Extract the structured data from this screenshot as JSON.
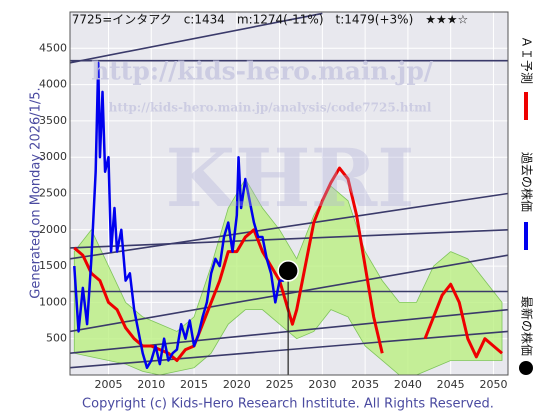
{
  "chart_data": {
    "type": "line",
    "title": "7725=インタアク　c:1434　m:1274(-11%)　t:1479(+3%)　★★★☆",
    "side_note": "Generated on Monday 2026/1/5.",
    "footer": "Copyright (c) Kids-Hero Research Institute. All Rights Reserved.",
    "watermarks": [
      "http://kids-hero.main.jp/",
      "http://kids-hero.main.jp/analysis/code7725.html",
      "KHRI"
    ],
    "xlim": [
      2000.5,
      2051.7
    ],
    "ylim": [
      0,
      5000
    ],
    "xticks": [
      2005,
      2010,
      2015,
      2020,
      2025,
      2030,
      2035,
      2040,
      2045,
      2050
    ],
    "yticks": [
      500,
      1000,
      1500,
      2000,
      2500,
      3000,
      3500,
      4000,
      4500
    ],
    "grid": true,
    "band": {
      "color": "#b8f07a",
      "x": [
        2001,
        2003,
        2005,
        2007,
        2009,
        2011,
        2013,
        2015,
        2017,
        2019,
        2021,
        2023,
        2025,
        2027,
        2029,
        2031,
        2033,
        2035,
        2037,
        2039,
        2041,
        2043,
        2045,
        2047,
        2049,
        2051
      ],
      "upper": [
        1700,
        2000,
        1500,
        1000,
        800,
        700,
        600,
        800,
        1500,
        2300,
        2700,
        2300,
        2000,
        1600,
        2200,
        2600,
        2400,
        1700,
        1300,
        1000,
        1000,
        1500,
        1700,
        1600,
        1300,
        1000
      ],
      "lower": [
        300,
        250,
        200,
        150,
        50,
        0,
        50,
        100,
        300,
        700,
        900,
        900,
        700,
        500,
        600,
        900,
        800,
        400,
        200,
        0,
        0,
        100,
        200,
        200,
        200,
        200
      ]
    },
    "trend_lines": [
      [
        [
          2000.5,
          4330
        ],
        [
          2051.7,
          4330
        ]
      ],
      [
        [
          2000.5,
          4300
        ],
        [
          2030,
          4980
        ]
      ],
      [
        [
          2000.5,
          1150
        ],
        [
          2051.7,
          1150
        ]
      ],
      [
        [
          2000.5,
          1600
        ],
        [
          2051.7,
          2500
        ]
      ],
      [
        [
          2000.5,
          1750
        ],
        [
          2051.7,
          2000
        ]
      ],
      [
        [
          2000.5,
          600
        ],
        [
          2051.7,
          1650
        ]
      ],
      [
        [
          2000.5,
          300
        ],
        [
          2051.7,
          900
        ]
      ],
      [
        [
          2000.5,
          100
        ],
        [
          2051.7,
          600
        ]
      ]
    ],
    "series": [
      {
        "name": "ＡＩ予測",
        "color": "#ee0000",
        "x": [
          2001,
          2002,
          2003,
          2004,
          2005,
          2006,
          2007,
          2008,
          2009,
          2010,
          2011,
          2012,
          2013,
          2014,
          2015,
          2016,
          2017,
          2018,
          2019,
          2020,
          2021,
          2022,
          2023,
          2024,
          2025,
          2026,
          2026.5,
          2027,
          2028,
          2029,
          2030,
          2031,
          2032,
          2033,
          2034,
          2035,
          2036,
          2037,
          2038,
          2039,
          2040,
          2041,
          2042,
          2043,
          2044,
          2045,
          2046,
          2047,
          2048,
          2049,
          2050,
          2051
        ],
        "values": [
          1750,
          1650,
          1400,
          1300,
          1000,
          900,
          650,
          500,
          400,
          400,
          350,
          300,
          200,
          350,
          400,
          700,
          1000,
          1300,
          1700,
          1700,
          1900,
          2000,
          1700,
          1500,
          1300,
          900,
          700,
          900,
          1500,
          2100,
          2400,
          2650,
          2850,
          2700,
          2200,
          1500,
          800,
          300,
          null,
          null,
          null,
          null,
          500,
          800,
          1100,
          1250,
          1000,
          500,
          250,
          500,
          400,
          300
        ]
      },
      {
        "name": "過去の株価",
        "color": "#0000ee",
        "x": [
          2001,
          2001.5,
          2002,
          2002.5,
          2003,
          2003.5,
          2003.8,
          2004,
          2004.3,
          2004.6,
          2005,
          2005.3,
          2005.7,
          2006,
          2006.5,
          2007,
          2007.5,
          2008,
          2008.5,
          2009,
          2009.5,
          2010,
          2010.5,
          2011,
          2011.5,
          2012,
          2012.5,
          2013,
          2013.5,
          2014,
          2014.5,
          2015,
          2015.5,
          2016,
          2016.5,
          2017,
          2017.5,
          2018,
          2018.5,
          2019,
          2019.5,
          2020,
          2020.2,
          2020.5,
          2021,
          2021.5,
          2022,
          2022.5,
          2023,
          2023.5,
          2024,
          2024.5,
          2025,
          2025.5
        ],
        "values": [
          1500,
          600,
          1200,
          700,
          1600,
          2800,
          4300,
          3000,
          3900,
          2800,
          3000,
          1700,
          2300,
          1700,
          2000,
          1300,
          1400,
          900,
          600,
          300,
          100,
          200,
          400,
          150,
          500,
          200,
          300,
          350,
          700,
          500,
          750,
          400,
          550,
          800,
          1000,
          1400,
          1600,
          1500,
          1900,
          2100,
          1700,
          2200,
          3000,
          2300,
          2700,
          2400,
          2100,
          1900,
          1900,
          1600,
          1400,
          1000,
          1300,
          1300
        ]
      }
    ],
    "latest": {
      "name": "最新の株価",
      "color": "#000000",
      "x": 2026,
      "value": 1434
    }
  }
}
